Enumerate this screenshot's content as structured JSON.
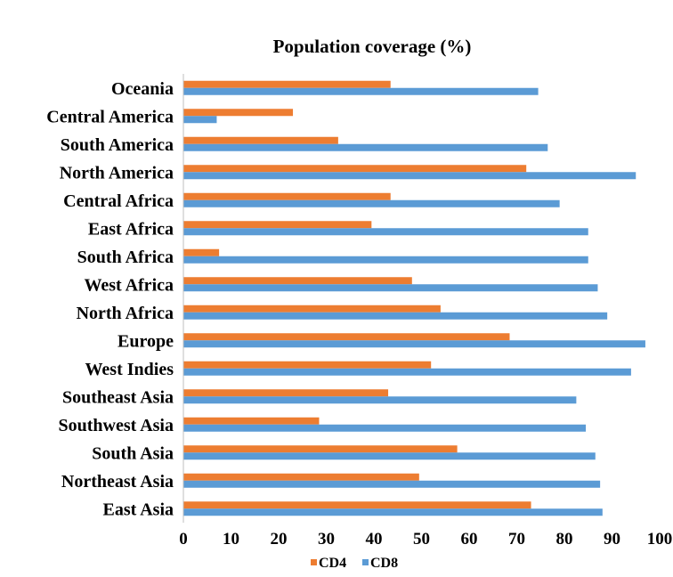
{
  "chart_data": {
    "type": "bar",
    "orientation": "horizontal",
    "title": "Population coverage (%)",
    "categories": [
      "Oceania",
      "Central America",
      "South America",
      "North America",
      "Central Africa",
      "East Africa",
      "South Africa",
      "West Africa",
      "North Africa",
      "Europe",
      "West Indies",
      "Southeast  Asia",
      "Southwest  Asia",
      "South Asia",
      "Northeast Asia",
      "East Asia"
    ],
    "series": [
      {
        "name": "CD4",
        "color": "#ED7D31",
        "values": [
          43.5,
          23.0,
          32.5,
          72.0,
          43.5,
          39.5,
          7.5,
          48.0,
          54.0,
          68.5,
          52.0,
          43.0,
          28.5,
          57.5,
          49.5,
          73.0
        ]
      },
      {
        "name": "CD8",
        "color": "#5B9BD5",
        "values": [
          74.5,
          7.0,
          76.5,
          95.0,
          79.0,
          85.0,
          85.0,
          87.0,
          89.0,
          97.0,
          94.0,
          82.5,
          84.5,
          86.5,
          87.5,
          88.0
        ]
      }
    ],
    "xlim": [
      0,
      100
    ],
    "xticks": [
      "0",
      "10",
      "20",
      "30",
      "40",
      "50",
      "60",
      "70",
      "80",
      "90",
      "100"
    ],
    "grid": false,
    "legend_position": "bottom"
  }
}
